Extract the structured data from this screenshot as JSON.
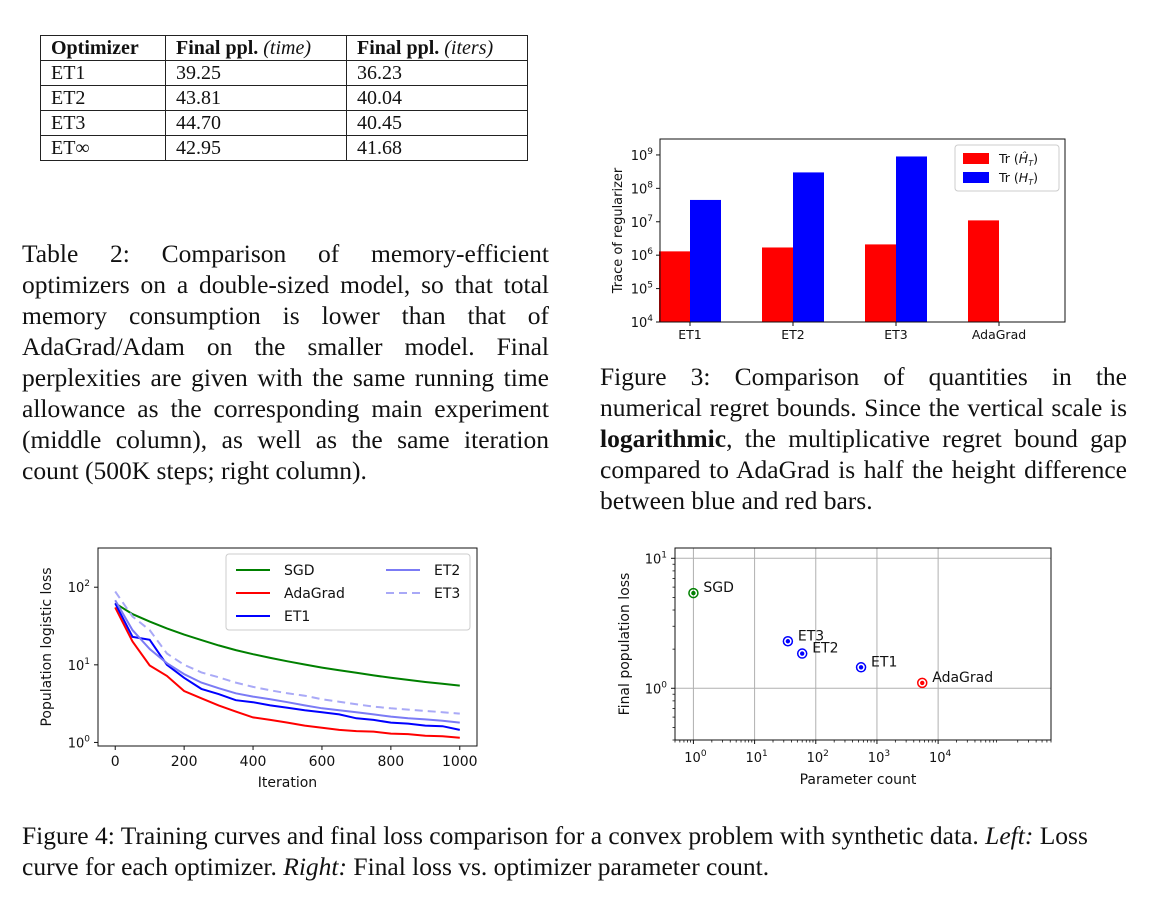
{
  "table2": {
    "headers": [
      {
        "bold": "Optimizer",
        "italic": ""
      },
      {
        "bold": "Final ppl.",
        "italic": "(time)"
      },
      {
        "bold": "Final ppl.",
        "italic": "(iters)"
      }
    ],
    "rows": [
      [
        "ET1",
        "39.25",
        "36.23"
      ],
      [
        "ET2",
        "43.81",
        "40.04"
      ],
      [
        "ET3",
        "44.70",
        "40.45"
      ],
      [
        "ET∞",
        "42.95",
        "41.68"
      ]
    ],
    "caption": "Table 2: Comparison of memory-efficient optimizers on a double-sized model, so that total memory consumption is lower than that of AdaGrad/Adam on the smaller model. Final perplexities are given with the same running time allowance as the corresponding main experiment (middle column), as well as the same iteration count (500K steps; right column)."
  },
  "figure3": {
    "caption_before": "Figure 3: Comparison of quantities in the numerical regret bounds. Since the vertical scale is ",
    "caption_bold": "logarithmic",
    "caption_after": ", the multiplicative regret bound gap compared to AdaGrad is half the height difference between blue and red bars."
  },
  "figure4": {
    "caption_prefix": "Figure 4: Training curves and final loss comparison for a convex problem with synthetic data. ",
    "left_label": "Left:",
    "caption_mid": " Loss curve for each optimizer. ",
    "right_label": "Right:",
    "caption_end": " Final loss vs. optimizer parameter count."
  },
  "chart_data": [
    {
      "type": "bar",
      "scale": "log",
      "ylabel": "Trace of regularizer",
      "xlabel": "",
      "title": "",
      "categories": [
        "ET1",
        "ET2",
        "ET3",
        "AdaGrad"
      ],
      "ylim": [
        10000,
        3000000000
      ],
      "yticks": [
        10000,
        100000,
        1000000,
        10000000,
        100000000,
        1000000000
      ],
      "ytick_exponents": [
        "4",
        "5",
        "6",
        "7",
        "8",
        "9"
      ],
      "legend_position": "top-right",
      "series": [
        {
          "name_text": "Tr (",
          "name_sym": "Ĥ",
          "name_sub": "T",
          "name_close": ")",
          "color": "#ff0000",
          "values": [
            1300000,
            1700000,
            2100000,
            11000000
          ]
        },
        {
          "name_text": "Tr (",
          "name_sym": "H",
          "name_sub": "T",
          "name_close": ")",
          "color": "#0000ff",
          "values": [
            45000000,
            300000000,
            900000000,
            null
          ]
        }
      ]
    },
    {
      "type": "line",
      "scale": "log-y",
      "xlabel": "Iteration",
      "ylabel": "Population logistic loss",
      "title": "",
      "xlim": [
        -50,
        1050
      ],
      "ylim": [
        0.9,
        320
      ],
      "xticks": [
        0,
        200,
        400,
        600,
        800,
        1000
      ],
      "ytick_exponents": [
        "0",
        "1",
        "2"
      ],
      "legend_position": "top-right",
      "series": [
        {
          "name": "SGD",
          "color": "#008000",
          "dash": "",
          "x": [
            0,
            50,
            100,
            150,
            200,
            250,
            300,
            350,
            400,
            450,
            500,
            550,
            600,
            650,
            700,
            750,
            800,
            850,
            900,
            950,
            1000
          ],
          "y": [
            62,
            45,
            36,
            29.5,
            24.5,
            20.8,
            17.8,
            15.5,
            13.7,
            12.3,
            11.1,
            10.1,
            9.2,
            8.5,
            7.9,
            7.3,
            6.8,
            6.4,
            6.0,
            5.7,
            5.4
          ]
        },
        {
          "name": "AdaGrad",
          "color": "#ff0000",
          "dash": "",
          "x": [
            0,
            50,
            100,
            150,
            200,
            250,
            300,
            350,
            400,
            450,
            500,
            550,
            600,
            650,
            700,
            750,
            800,
            850,
            900,
            950,
            1000
          ],
          "y": [
            55,
            20,
            9.8,
            7.2,
            4.6,
            3.7,
            3.0,
            2.5,
            2.1,
            1.95,
            1.8,
            1.65,
            1.55,
            1.45,
            1.4,
            1.38,
            1.3,
            1.28,
            1.22,
            1.2,
            1.15
          ]
        },
        {
          "name": "ET1",
          "color": "#0000ff",
          "dash": "",
          "x": [
            0,
            50,
            100,
            150,
            200,
            250,
            300,
            350,
            400,
            450,
            500,
            550,
            600,
            650,
            700,
            750,
            800,
            850,
            900,
            950,
            1000
          ],
          "y": [
            62,
            23,
            21,
            10,
            6.8,
            4.9,
            4.2,
            3.5,
            3.3,
            3.0,
            2.8,
            2.6,
            2.45,
            2.3,
            2.05,
            1.95,
            1.8,
            1.75,
            1.65,
            1.62,
            1.45
          ]
        },
        {
          "name": "ET2",
          "color": "#7b7bf5",
          "dash": "",
          "x": [
            0,
            50,
            100,
            150,
            200,
            250,
            300,
            350,
            400,
            450,
            500,
            550,
            600,
            650,
            700,
            750,
            800,
            850,
            900,
            950,
            1000
          ],
          "y": [
            68,
            28,
            16,
            10.5,
            7.6,
            5.9,
            5.0,
            4.3,
            3.9,
            3.6,
            3.3,
            3.0,
            2.75,
            2.6,
            2.45,
            2.3,
            2.15,
            2.05,
            1.98,
            1.9,
            1.8
          ]
        },
        {
          "name": "ET3",
          "color": "#a9a9f7",
          "dash": "8,5",
          "x": [
            0,
            50,
            100,
            150,
            200,
            250,
            300,
            350,
            400,
            450,
            500,
            550,
            600,
            650,
            700,
            750,
            800,
            850,
            900,
            950,
            1000
          ],
          "y": [
            88,
            42,
            28,
            14,
            10,
            8.0,
            6.9,
            5.9,
            5.2,
            4.7,
            4.3,
            4.0,
            3.6,
            3.35,
            3.1,
            2.9,
            2.75,
            2.65,
            2.55,
            2.45,
            2.35
          ]
        }
      ]
    },
    {
      "type": "scatter",
      "scale": "log-log",
      "xlabel": "Parameter count",
      "ylabel": "Final population loss",
      "title": "",
      "xlim": [
        0.5,
        700000
      ],
      "ylim": [
        0.4,
        12
      ],
      "xtick_exponents": [
        "0",
        "1",
        "2",
        "3",
        "4"
      ],
      "ytick_exponents": [
        "0",
        "1"
      ],
      "grid": true,
      "points": [
        {
          "label": "SGD",
          "x": 1,
          "y": 5.4,
          "color": "#008000"
        },
        {
          "label": "ET3",
          "x": 35,
          "y": 2.3,
          "color": "#0000ff"
        },
        {
          "label": "ET2",
          "x": 60,
          "y": 1.85,
          "color": "#0000ff"
        },
        {
          "label": "ET1",
          "x": 550,
          "y": 1.45,
          "color": "#0000ff"
        },
        {
          "label": "AdaGrad",
          "x": 5500,
          "y": 1.1,
          "color": "#ff0000"
        }
      ]
    }
  ]
}
